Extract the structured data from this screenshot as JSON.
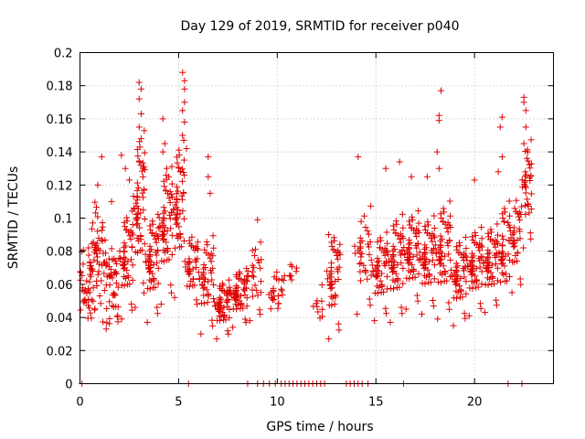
{
  "chart_data": {
    "type": "scatter",
    "title": "Day 129 of 2019, SRMTID for receiver p040",
    "xlabel": "GPS time / hours",
    "ylabel": "SRMTID / TECUs",
    "xlim": [
      0,
      24
    ],
    "ylim": [
      0,
      0.2
    ],
    "xticks": [
      0,
      5,
      10,
      15,
      20
    ],
    "xtick_labels": [
      "0",
      "5",
      "10",
      "15",
      "20"
    ],
    "yticks": [
      0,
      0.02,
      0.04,
      0.06,
      0.08,
      0.1,
      0.12,
      0.14,
      0.16,
      0.18,
      0.2
    ],
    "ytick_labels": [
      "0",
      "0.02",
      "0.04",
      "0.06",
      "0.08",
      "0.1",
      "0.12",
      "0.14",
      "0.16",
      "0.18",
      "0.2"
    ],
    "grid": true,
    "marker": "+",
    "color": "#e00000",
    "series": [
      {
        "name": "SRMTID",
        "zero_times": [
          0.1,
          5.5,
          8.5,
          9.0,
          9.3,
          9.6,
          9.9,
          10.2,
          10.4,
          10.6,
          10.8,
          11.0,
          11.2,
          11.4,
          11.6,
          11.8,
          12.0,
          12.2,
          12.4,
          13.5,
          13.7,
          13.9,
          14.1,
          14.3,
          14.6,
          16.4,
          21.7,
          22.4
        ],
        "clusters": [
          {
            "t0": 0.0,
            "t1": 0.6,
            "y": 0.063,
            "spread": 0.04,
            "n": 40
          },
          {
            "t0": 0.6,
            "t1": 1.2,
            "y": 0.075,
            "spread": 0.055,
            "n": 45
          },
          {
            "t0": 1.2,
            "t1": 2.0,
            "y": 0.06,
            "spread": 0.045,
            "n": 50
          },
          {
            "t0": 2.0,
            "t1": 2.7,
            "y": 0.072,
            "spread": 0.055,
            "n": 50
          },
          {
            "t0": 2.7,
            "t1": 3.3,
            "y": 0.1,
            "spread": 0.09,
            "n": 55
          },
          {
            "t0": 3.3,
            "t1": 4.0,
            "y": 0.07,
            "spread": 0.055,
            "n": 55
          },
          {
            "t0": 4.0,
            "t1": 4.7,
            "y": 0.09,
            "spread": 0.07,
            "n": 55
          },
          {
            "t0": 4.7,
            "t1": 5.3,
            "y": 0.1,
            "spread": 0.08,
            "n": 50
          },
          {
            "t0": 5.3,
            "t1": 6.0,
            "y": 0.068,
            "spread": 0.04,
            "n": 40
          },
          {
            "t0": 6.0,
            "t1": 6.8,
            "y": 0.06,
            "spread": 0.05,
            "n": 45
          },
          {
            "t0": 6.8,
            "t1": 7.6,
            "y": 0.045,
            "spread": 0.03,
            "n": 55
          },
          {
            "t0": 7.6,
            "t1": 8.5,
            "y": 0.052,
            "spread": 0.03,
            "n": 60
          },
          {
            "t0": 8.5,
            "t1": 9.2,
            "y": 0.062,
            "spread": 0.04,
            "n": 25
          },
          {
            "t0": 9.5,
            "t1": 10.4,
            "y": 0.052,
            "spread": 0.03,
            "n": 25
          },
          {
            "t0": 10.5,
            "t1": 11.0,
            "y": 0.065,
            "spread": 0.015,
            "n": 8
          },
          {
            "t0": 11.8,
            "t1": 12.3,
            "y": 0.045,
            "spread": 0.025,
            "n": 10
          },
          {
            "t0": 12.5,
            "t1": 13.2,
            "y": 0.06,
            "spread": 0.055,
            "n": 45
          },
          {
            "t0": 13.9,
            "t1": 14.8,
            "y": 0.075,
            "spread": 0.055,
            "n": 35
          },
          {
            "t0": 14.8,
            "t1": 15.6,
            "y": 0.065,
            "spread": 0.045,
            "n": 50
          },
          {
            "t0": 15.6,
            "t1": 16.4,
            "y": 0.07,
            "spread": 0.055,
            "n": 55
          },
          {
            "t0": 16.4,
            "t1": 17.2,
            "y": 0.075,
            "spread": 0.05,
            "n": 55
          },
          {
            "t0": 17.2,
            "t1": 18.0,
            "y": 0.072,
            "spread": 0.05,
            "n": 55
          },
          {
            "t0": 18.0,
            "t1": 18.8,
            "y": 0.075,
            "spread": 0.06,
            "n": 55
          },
          {
            "t0": 18.8,
            "t1": 19.6,
            "y": 0.062,
            "spread": 0.045,
            "n": 55
          },
          {
            "t0": 19.6,
            "t1": 20.4,
            "y": 0.068,
            "spread": 0.045,
            "n": 55
          },
          {
            "t0": 20.4,
            "t1": 21.2,
            "y": 0.07,
            "spread": 0.045,
            "n": 55
          },
          {
            "t0": 21.2,
            "t1": 21.8,
            "y": 0.075,
            "spread": 0.06,
            "n": 40
          },
          {
            "t0": 21.8,
            "t1": 22.4,
            "y": 0.085,
            "spread": 0.05,
            "n": 35
          },
          {
            "t0": 22.4,
            "t1": 22.9,
            "y": 0.115,
            "spread": 0.055,
            "n": 35
          }
        ],
        "spikes": [
          [
            0.9,
            0.12
          ],
          [
            1.1,
            0.137
          ],
          [
            1.6,
            0.11
          ],
          [
            2.1,
            0.138
          ],
          [
            2.3,
            0.13
          ],
          [
            2.5,
            0.123
          ],
          [
            3.0,
            0.182
          ],
          [
            3.1,
            0.178
          ],
          [
            3.0,
            0.172
          ],
          [
            3.1,
            0.163
          ],
          [
            3.0,
            0.155
          ],
          [
            3.1,
            0.148
          ],
          [
            3.2,
            0.13
          ],
          [
            4.2,
            0.16
          ],
          [
            4.3,
            0.145
          ],
          [
            4.2,
            0.14
          ],
          [
            4.4,
            0.13
          ],
          [
            4.5,
            0.125
          ],
          [
            5.2,
            0.188
          ],
          [
            5.3,
            0.183
          ],
          [
            5.3,
            0.178
          ],
          [
            5.3,
            0.17
          ],
          [
            5.2,
            0.165
          ],
          [
            5.3,
            0.158
          ],
          [
            5.2,
            0.15
          ],
          [
            5.4,
            0.142
          ],
          [
            5.1,
            0.128
          ],
          [
            6.5,
            0.137
          ],
          [
            6.5,
            0.125
          ],
          [
            6.6,
            0.115
          ],
          [
            9.0,
            0.099
          ],
          [
            12.6,
            0.09
          ],
          [
            14.1,
            0.137
          ],
          [
            15.5,
            0.13
          ],
          [
            16.2,
            0.134
          ],
          [
            16.8,
            0.125
          ],
          [
            17.6,
            0.125
          ],
          [
            18.1,
            0.14
          ],
          [
            18.2,
            0.13
          ],
          [
            18.3,
            0.177
          ],
          [
            18.2,
            0.162
          ],
          [
            18.2,
            0.159
          ],
          [
            20.0,
            0.123
          ],
          [
            21.2,
            0.128
          ],
          [
            21.3,
            0.155
          ],
          [
            21.4,
            0.161
          ],
          [
            21.4,
            0.137
          ],
          [
            22.5,
            0.173
          ],
          [
            22.5,
            0.17
          ],
          [
            22.6,
            0.165
          ],
          [
            22.6,
            0.155
          ],
          [
            22.5,
            0.145
          ],
          [
            22.7,
            0.14
          ]
        ]
      }
    ]
  }
}
